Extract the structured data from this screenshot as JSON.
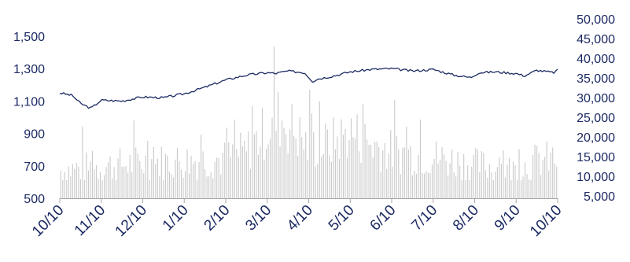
{
  "colors": {
    "line": "#1c2a63",
    "bars": "#c9c9c9",
    "axis_text": "#1c2a63",
    "axis_line": "#a6a6a6"
  },
  "chart_data": {
    "type": "line",
    "title": "",
    "grid": false,
    "legend": "none",
    "x_ticks": [
      "10/10",
      "11/10",
      "12/10",
      "1/10",
      "2/10",
      "3/10",
      "4/10",
      "5/10",
      "6/10",
      "7/10",
      "8/10",
      "9/10",
      "10/10"
    ],
    "y_left": {
      "range": [
        500,
        1500
      ],
      "ticks": [
        "500",
        "700",
        "900",
        "1,100",
        "1,300",
        "1,500"
      ]
    },
    "y_right": {
      "range": [
        5000,
        50000
      ],
      "ticks": [
        "5,000",
        "10,000",
        "15,000",
        "20,000",
        "25,000",
        "30,000",
        "35,000",
        "40,000",
        "45,000",
        "50,000"
      ]
    },
    "series": [
      {
        "type": "line",
        "axis": "left",
        "months": [
          0,
          0.3,
          0.5,
          0.75,
          1.0,
          1.5,
          2.0,
          2.5,
          3.0,
          3.5,
          4.0,
          4.5,
          5.0,
          5.2,
          5.5,
          5.9,
          6.1,
          6.2,
          6.4,
          6.6,
          7.0,
          7.5,
          8.0,
          8.5,
          9.0,
          9.5,
          9.9,
          10.1,
          10.5,
          11.0,
          11.2,
          11.5,
          11.9,
          12.0
        ],
        "values": [
          1150,
          1135,
          1085,
          1055,
          1105,
          1100,
          1125,
          1120,
          1145,
          1185,
          1230,
          1260,
          1275,
          1270,
          1285,
          1275,
          1220,
          1235,
          1245,
          1255,
          1280,
          1295,
          1300,
          1285,
          1295,
          1260,
          1245,
          1275,
          1280,
          1270,
          1255,
          1290,
          1275,
          1290
        ]
      },
      {
        "type": "bar",
        "axis": "right",
        "note": "daily volume, daily values approximated",
        "anchors_month": [
          0,
          1,
          2,
          3,
          4,
          4.5,
          5.0,
          5.3,
          5.7,
          6.0,
          6.5,
          7.0,
          7.5,
          8.0,
          9.0,
          10.0,
          11.0,
          11.5,
          12.0
        ],
        "anchors_value": [
          12000,
          13000,
          14000,
          14500,
          15000,
          17000,
          23000,
          26000,
          22000,
          18000,
          19000,
          22000,
          19000,
          17000,
          15500,
          13500,
          12000,
          14500,
          15000
        ]
      }
    ]
  }
}
